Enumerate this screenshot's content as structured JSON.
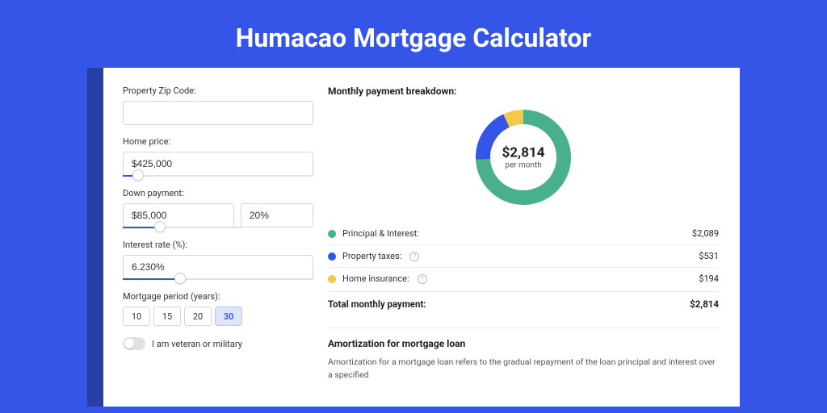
{
  "page": {
    "title": "Humacao Mortgage Calculator"
  },
  "colors": {
    "bg": "#3555e8",
    "principal": "#48b08c",
    "taxes": "#3555e8",
    "insurance": "#f3c94b"
  },
  "form": {
    "zip": {
      "label": "Property Zip Code:",
      "value": ""
    },
    "home_price": {
      "label": "Home price:",
      "value": "$425,000",
      "slider_pct": 8
    },
    "down_payment": {
      "label": "Down payment:",
      "amount": "$85,000",
      "percent": "20%",
      "slider_pct": 20
    },
    "interest": {
      "label": "Interest rate (%):",
      "value": "6.230%",
      "slider_pct": 30
    },
    "period": {
      "label": "Mortgage period (years):",
      "options": [
        "10",
        "15",
        "20",
        "30"
      ],
      "selected": "30"
    },
    "veteran": {
      "label": "I am veteran or military",
      "checked": false
    }
  },
  "breakdown": {
    "title": "Monthly payment breakdown:",
    "donut": {
      "amount": "$2,814",
      "sub": "per month",
      "segments": [
        {
          "key": "principal",
          "value": 2089,
          "color": "#48b08c"
        },
        {
          "key": "taxes",
          "value": 531,
          "color": "#3555e8"
        },
        {
          "key": "insurance",
          "value": 194,
          "color": "#f3c94b"
        }
      ],
      "stroke_width": 18
    },
    "legend": [
      {
        "label": "Principal & Interest:",
        "value": "$2,089",
        "color": "#48b08c",
        "info": false
      },
      {
        "label": "Property taxes:",
        "value": "$531",
        "color": "#3555e8",
        "info": true
      },
      {
        "label": "Home insurance:",
        "value": "$194",
        "color": "#f3c94b",
        "info": true
      }
    ],
    "total": {
      "label": "Total monthly payment:",
      "value": "$2,814"
    }
  },
  "amortization": {
    "title": "Amortization for mortgage loan",
    "text": "Amortization for a mortgage loan refers to the gradual repayment of the loan principal and interest over a specified"
  }
}
